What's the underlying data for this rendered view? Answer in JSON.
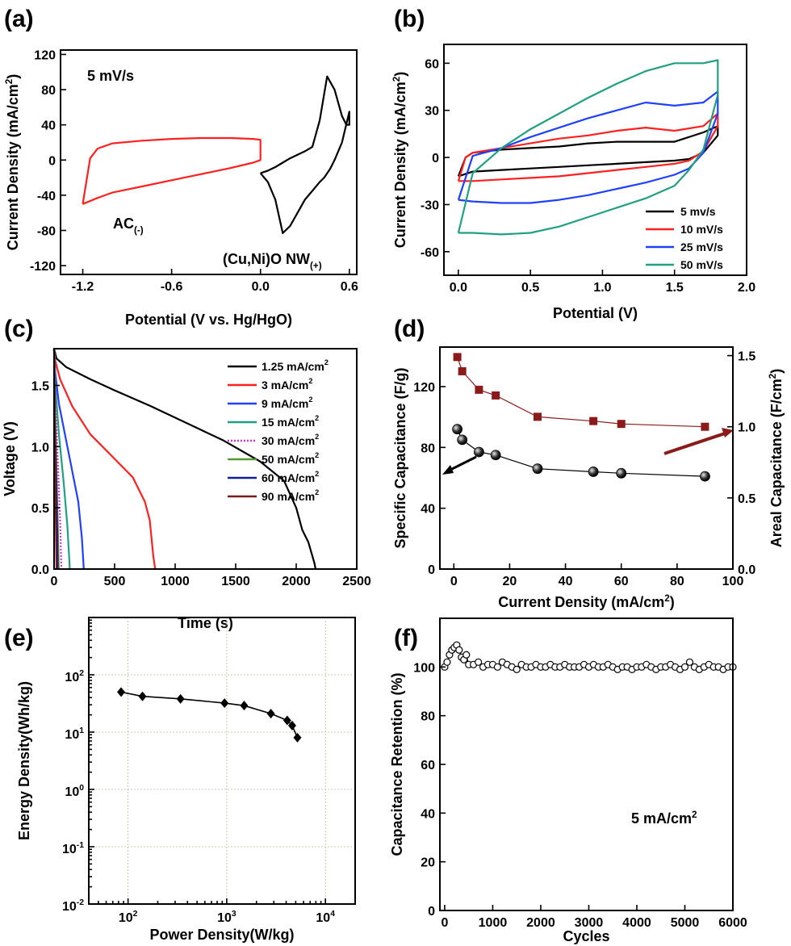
{
  "panel_labels": [
    "(a)",
    "(b)",
    "(c)",
    "(d)",
    "(e)",
    "(f)"
  ],
  "chart_data": [
    {
      "panel": "(a)",
      "type": "line",
      "xlabel": "Potential (V vs. Hg/HgO)",
      "ylabel": "Current Density (mA/cm²)",
      "ylabel_main": "Current Density (mA/cm",
      "ylabel_sup": "2",
      "ylabel_end": ")",
      "xlim": [
        -1.35,
        0.65
      ],
      "ylim": [
        -130,
        125
      ],
      "xticks": [
        -1.2,
        -0.6,
        0.0,
        0.6
      ],
      "xtick_labels": [
        "-1.2",
        "-0.6",
        "0.0",
        "0.6"
      ],
      "yticks": [
        -120,
        -80,
        -40,
        0,
        40,
        80,
        120
      ],
      "ytick_labels": [
        "-120",
        "-80",
        "-40",
        "0",
        "40",
        "80",
        "120"
      ],
      "annotation": "5 mV/s",
      "series_labels": [
        {
          "main": "AC",
          "sub": "(-)"
        },
        {
          "main": "(Cu,Ni)O NW",
          "sub": "(+)"
        }
      ],
      "series": [
        {
          "name": "AC(-)",
          "color": "#ff2020",
          "x": [
            -1.2,
            -1.1,
            -1.0,
            -0.8,
            -0.6,
            -0.4,
            -0.2,
            -0.05,
            0.0,
            0.0,
            -0.05,
            -0.2,
            -0.4,
            -0.6,
            -0.8,
            -1.0,
            -1.1,
            -1.15,
            -1.2
          ],
          "y": [
            -50,
            -43,
            -37,
            -30,
            -23,
            -16,
            -9,
            -3,
            0,
            23,
            24,
            25,
            25,
            24,
            22,
            19,
            13,
            2,
            -50
          ]
        },
        {
          "name": "(Cu,Ni)O NW(+)",
          "color": "#000000",
          "x": [
            0.0,
            0.05,
            0.1,
            0.15,
            0.2,
            0.25,
            0.3,
            0.35,
            0.4,
            0.45,
            0.5,
            0.55,
            0.58,
            0.6,
            0.6,
            0.55,
            0.5,
            0.47,
            0.45,
            0.43,
            0.4,
            0.35,
            0.3,
            0.25,
            0.2,
            0.15,
            0.1,
            0.05,
            0.0
          ],
          "y": [
            -15,
            -12,
            -8,
            -3,
            2,
            6,
            10,
            15,
            45,
            95,
            80,
            50,
            40,
            40,
            55,
            20,
            0,
            -10,
            -15,
            -20,
            -25,
            -35,
            -45,
            -60,
            -75,
            -83,
            -45,
            -25,
            -15
          ]
        }
      ]
    },
    {
      "panel": "(b)",
      "type": "line",
      "xlabel": "Potential (V)",
      "ylabel": "Current Density (mA/cm²)",
      "ylabel_main": "Current Density (mA/cm",
      "ylabel_sup": "2",
      "ylabel_end": ")",
      "xlim": [
        -0.1,
        2.0
      ],
      "ylim": [
        -75,
        72
      ],
      "xticks": [
        0.0,
        0.5,
        1.0,
        1.5,
        2.0
      ],
      "xtick_labels": [
        "0.0",
        "0.5",
        "1.0",
        "1.5",
        "2.0"
      ],
      "yticks": [
        -60,
        -30,
        0,
        30,
        60
      ],
      "ytick_labels": [
        "-60",
        "-30",
        "0",
        "30",
        "60"
      ],
      "legend_position": "lower-right",
      "series": [
        {
          "name": "5 mv/s",
          "color": "#000000",
          "x": [
            0.0,
            0.1,
            0.3,
            0.5,
            0.7,
            0.9,
            1.1,
            1.3,
            1.5,
            1.6,
            1.7,
            1.8,
            1.8,
            1.7,
            1.5,
            1.3,
            1.1,
            0.9,
            0.7,
            0.5,
            0.3,
            0.1,
            0.05,
            0.0
          ],
          "y": [
            -12,
            -9,
            -8,
            -7,
            -6,
            -5,
            -4,
            -3,
            -2,
            -1,
            3,
            14,
            20,
            16,
            10,
            10,
            10,
            9,
            7,
            6,
            5,
            3,
            0,
            -12
          ]
        },
        {
          "name": "10 mV/s",
          "color": "#ff2020",
          "x": [
            0.0,
            0.1,
            0.3,
            0.5,
            0.7,
            0.9,
            1.1,
            1.3,
            1.5,
            1.6,
            1.7,
            1.8,
            1.8,
            1.7,
            1.5,
            1.3,
            1.1,
            0.9,
            0.7,
            0.5,
            0.3,
            0.1,
            0.05,
            0.0
          ],
          "y": [
            -15,
            -15,
            -14,
            -13,
            -12,
            -10,
            -8,
            -6,
            -4,
            -2,
            4,
            20,
            28,
            20,
            17,
            19,
            17,
            14,
            12,
            9,
            6,
            3,
            0,
            -15
          ]
        },
        {
          "name": "25 mV/s",
          "color": "#2040ff",
          "x": [
            0.0,
            0.1,
            0.3,
            0.5,
            0.7,
            0.9,
            1.1,
            1.3,
            1.5,
            1.6,
            1.7,
            1.8,
            1.8,
            1.7,
            1.5,
            1.3,
            1.1,
            0.9,
            0.7,
            0.5,
            0.3,
            0.1,
            0.0
          ],
          "y": [
            -27,
            -28,
            -29,
            -29,
            -27,
            -24,
            -20,
            -16,
            -11,
            -7,
            3,
            28,
            42,
            35,
            33,
            35,
            30,
            25,
            19,
            13,
            6,
            1,
            -27
          ]
        },
        {
          "name": "50 mV/s",
          "color": "#20a080",
          "x": [
            0.0,
            0.1,
            0.3,
            0.5,
            0.7,
            0.9,
            1.1,
            1.3,
            1.5,
            1.6,
            1.7,
            1.8,
            1.8,
            1.7,
            1.5,
            1.3,
            1.1,
            0.9,
            0.7,
            0.5,
            0.3,
            0.1,
            0.0
          ],
          "y": [
            -48,
            -48,
            -49,
            -48,
            -44,
            -38,
            -32,
            -26,
            -18,
            -8,
            5,
            40,
            62,
            60,
            60,
            55,
            47,
            38,
            28,
            18,
            6,
            -10,
            -48
          ]
        }
      ]
    },
    {
      "panel": "(c)",
      "type": "line",
      "xlabel": "Time (s)",
      "ylabel": "Voltage (V)",
      "xlim": [
        0,
        2500
      ],
      "ylim": [
        0,
        1.8
      ],
      "xticks": [
        0,
        500,
        1000,
        1500,
        2000,
        2500
      ],
      "xtick_labels": [
        "0",
        "500",
        "1000",
        "1500",
        "2000",
        "2500"
      ],
      "yticks": [
        0.0,
        0.5,
        1.0,
        1.5
      ],
      "ytick_labels": [
        "0.0",
        "0.5",
        "1.0",
        "1.5"
      ],
      "legend_position": "top-right",
      "series": [
        {
          "name": "1.25 mA/cm²",
          "label_main": "1.25 mA/cm",
          "color": "#000000",
          "x": [
            0,
            20,
            100,
            300,
            500,
            800,
            1100,
            1400,
            1700,
            1900,
            2000,
            2050,
            2100,
            2150,
            2160
          ],
          "y": [
            1.8,
            1.72,
            1.65,
            1.55,
            1.46,
            1.33,
            1.19,
            1.05,
            0.88,
            0.72,
            0.5,
            0.32,
            0.22,
            0.05,
            0.0
          ]
        },
        {
          "name": "3 mA/cm²",
          "label_main": "3 mA/cm",
          "color": "#ff2020",
          "x": [
            0,
            10,
            50,
            150,
            300,
            500,
            650,
            750,
            790,
            820,
            835
          ],
          "y": [
            1.8,
            1.7,
            1.55,
            1.33,
            1.1,
            0.9,
            0.75,
            0.55,
            0.4,
            0.1,
            0.0
          ]
        },
        {
          "name": "9 mA/cm²",
          "label_main": "9 mA/cm",
          "color": "#2040ff",
          "x": [
            0,
            10,
            40,
            100,
            150,
            200,
            230,
            245
          ],
          "y": [
            1.8,
            1.6,
            1.35,
            1.05,
            0.8,
            0.55,
            0.25,
            0.0
          ]
        },
        {
          "name": "15 mA/cm²",
          "label_main": "15 mA/cm",
          "color": "#20a080",
          "x": [
            0,
            10,
            40,
            80,
            110,
            130
          ],
          "y": [
            1.8,
            1.5,
            1.1,
            0.7,
            0.35,
            0.0
          ]
        },
        {
          "name": "30 mA/cm²",
          "label_main": "30 mA/cm",
          "color": "#cc33cc",
          "dashed": true,
          "x": [
            0,
            10,
            30,
            50,
            60
          ],
          "y": [
            1.8,
            1.4,
            0.9,
            0.4,
            0.0
          ]
        },
        {
          "name": "50 mA/cm²",
          "label_main": "50 mA/cm",
          "color": "#559933",
          "x": [
            0,
            8,
            20,
            32,
            38
          ],
          "y": [
            1.8,
            1.3,
            0.8,
            0.3,
            0.0
          ]
        },
        {
          "name": "60 mA/cm²",
          "label_main": "60 mA/cm",
          "color": "#102090",
          "x": [
            0,
            6,
            16,
            26,
            30
          ],
          "y": [
            1.8,
            1.3,
            0.8,
            0.3,
            0.0
          ]
        },
        {
          "name": "90 mA/cm²",
          "label_main": "90 mA/cm",
          "color": "#7a1a1a",
          "x": [
            0,
            5,
            10,
            16,
            20
          ],
          "y": [
            1.8,
            1.3,
            0.8,
            0.3,
            0.0
          ]
        }
      ]
    },
    {
      "panel": "(d)",
      "type": "scatter",
      "xlabel": "Current Density (mA/cm²)",
      "xlabel_main": "Current Density (mA/cm",
      "xlabel_sup": "2",
      "xlabel_end": ")",
      "ylabel_left": "Specific Capacitance (F/g)",
      "ylabel_right": "Areal Capacitance (F/cm²)",
      "ylabel_right_main": "Areal Capacitance (F/cm",
      "ylabel_right_sup": "2",
      "ylabel_right_end": ")",
      "xlim": [
        -5,
        100
      ],
      "ylim_left": [
        0,
        146
      ],
      "ylim_right": [
        0,
        1.56
      ],
      "xticks": [
        0,
        20,
        40,
        60,
        80,
        100
      ],
      "xtick_labels": [
        "0",
        "20",
        "40",
        "60",
        "80",
        "100"
      ],
      "yticks_left": [
        0,
        40,
        80,
        120
      ],
      "ytick_labels_left": [
        "0",
        "40",
        "80",
        "120"
      ],
      "yticks_right": [
        0.0,
        0.5,
        1.0,
        1.5
      ],
      "ytick_labels_right": [
        "0.0",
        "0.5",
        "1.0",
        "1.5"
      ],
      "series": [
        {
          "name": "Specific Capacitance",
          "axis": "left",
          "marker": "sphere",
          "color": "#000000",
          "x": [
            1.25,
            3,
            9,
            15,
            30,
            50,
            60,
            90
          ],
          "y": [
            92,
            85,
            77,
            75,
            66,
            64,
            63,
            61
          ]
        },
        {
          "name": "Areal Capacitance",
          "axis": "right",
          "marker": "square",
          "color": "#8b1a1a",
          "x": [
            1.25,
            3,
            9,
            15,
            30,
            50,
            60,
            90
          ],
          "y": [
            1.49,
            1.39,
            1.26,
            1.22,
            1.07,
            1.04,
            1.02,
            1.0
          ]
        }
      ]
    },
    {
      "panel": "(e)",
      "type": "line",
      "xlabel": "Power Density(W/kg)",
      "ylabel": "Energy Density(Wh/kg)",
      "xscale": "log",
      "yscale": "log",
      "xlim": [
        40,
        20000
      ],
      "ylim": [
        0.01,
        1000
      ],
      "xtick_base": "10",
      "xtick_exponents": [
        "2",
        "3",
        "4"
      ],
      "ytick_base": "10",
      "ytick_exponents": [
        "-2",
        "-1",
        "0",
        "1",
        "2"
      ],
      "grid": true,
      "series": [
        {
          "name": "Ragone",
          "color": "#000000",
          "marker": "diamond",
          "x": [
            85,
            140,
            340,
            950,
            1500,
            2800,
            4100,
            4600,
            5200
          ],
          "y": [
            50,
            42,
            38,
            32,
            29,
            21,
            16,
            13,
            8
          ]
        }
      ]
    },
    {
      "panel": "(f)",
      "type": "scatter",
      "xlabel": "Cycles",
      "ylabel": "Capacitance Retention (%)",
      "xlim": [
        -100,
        6000
      ],
      "ylim": [
        0,
        120
      ],
      "xticks": [
        0,
        1000,
        2000,
        3000,
        4000,
        5000,
        6000
      ],
      "xtick_labels": [
        "0",
        "1000",
        "2000",
        "3000",
        "4000",
        "5000",
        "6000"
      ],
      "yticks": [
        0,
        20,
        40,
        60,
        80,
        100
      ],
      "ytick_labels": [
        "0",
        "20",
        "40",
        "60",
        "80",
        "100"
      ],
      "annotation_main": "5 mA/cm",
      "annotation_sup": "2",
      "series": [
        {
          "name": "Retention",
          "color": "#000000",
          "marker": "open-circle",
          "x": [
            0,
            50,
            100,
            150,
            200,
            250,
            300,
            350,
            400,
            450,
            500,
            600,
            700,
            800,
            900,
            1000,
            1100,
            1200,
            1300,
            1400,
            1500,
            1600,
            1700,
            1800,
            1900,
            2000,
            2100,
            2200,
            2300,
            2400,
            2500,
            2600,
            2700,
            2800,
            2900,
            3000,
            3100,
            3200,
            3300,
            3400,
            3500,
            3600,
            3700,
            3800,
            3900,
            4000,
            4100,
            4200,
            4300,
            4400,
            4500,
            4600,
            4700,
            4800,
            4900,
            5000,
            5100,
            5200,
            5300,
            5400,
            5500,
            5600,
            5700,
            5800,
            5900,
            6000
          ],
          "y": [
            100,
            102,
            105,
            107,
            108,
            109,
            107,
            104,
            103,
            105,
            101,
            101,
            102,
            100,
            101,
            101,
            100,
            102,
            101,
            100,
            99,
            101,
            100,
            100,
            101,
            100,
            100,
            101,
            100,
            100,
            101,
            100,
            100,
            100,
            101,
            100,
            101,
            100,
            100,
            101,
            100,
            99,
            100,
            100,
            99,
            100,
            100,
            101,
            100,
            99,
            100,
            100,
            101,
            100,
            99,
            100,
            102,
            100,
            99,
            100,
            101,
            100,
            100,
            99,
            100,
            100
          ]
        }
      ]
    }
  ]
}
